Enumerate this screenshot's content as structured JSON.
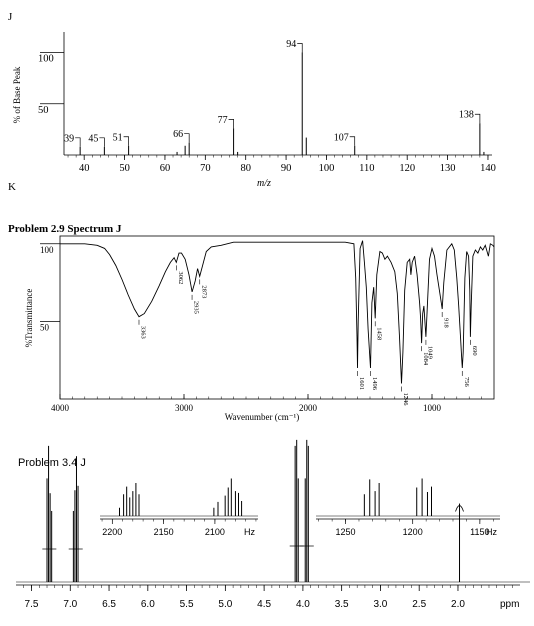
{
  "sections": {
    "ms_letter": "J",
    "ir_letter": "K",
    "ir_title": "Problem 2.9 Spectrum J",
    "nmr_title": "Problem 3.4 J"
  },
  "chart_data": [
    {
      "type": "bar",
      "name": "mass-spectrum",
      "xlabel": "m/z",
      "ylabel": "% of Base Peak",
      "xlim": [
        35,
        141
      ],
      "ylim": [
        0,
        120
      ],
      "xticks": [
        40,
        50,
        60,
        70,
        80,
        90,
        100,
        110,
        120,
        130,
        140
      ],
      "yticks": [
        50,
        100
      ],
      "peaks": [
        {
          "x": 39,
          "y": 8,
          "label": "39"
        },
        {
          "x": 45,
          "y": 8,
          "label": "45"
        },
        {
          "x": 51,
          "y": 9,
          "label": "51"
        },
        {
          "x": 63,
          "y": 3,
          "label": ""
        },
        {
          "x": 65,
          "y": 9,
          "label": ""
        },
        {
          "x": 66,
          "y": 12,
          "label": "66"
        },
        {
          "x": 77,
          "y": 26,
          "label": "77"
        },
        {
          "x": 78,
          "y": 3,
          "label": ""
        },
        {
          "x": 94,
          "y": 100,
          "label": "94"
        },
        {
          "x": 95,
          "y": 17,
          "label": ""
        },
        {
          "x": 107,
          "y": 9,
          "label": "107"
        },
        {
          "x": 138,
          "y": 31,
          "label": "138"
        },
        {
          "x": 139,
          "y": 3,
          "label": ""
        }
      ]
    },
    {
      "type": "line",
      "name": "ir-spectrum",
      "title": "Problem 2.9 Spectrum J",
      "xlabel": "Wavenumber (cm⁻¹)",
      "ylabel": "%Transmittance",
      "xlim": [
        4000,
        500
      ],
      "ylim": [
        0,
        105
      ],
      "xticks": [
        4000,
        3000,
        2000,
        1000
      ],
      "yticks": [
        50,
        100
      ],
      "peak_labels": [
        {
          "x": 3363,
          "y": 53,
          "label": "3363"
        },
        {
          "x": 3062,
          "y": 88,
          "label": "3062"
        },
        {
          "x": 2935,
          "y": 69,
          "label": "2935"
        },
        {
          "x": 2873,
          "y": 79,
          "label": "2873"
        },
        {
          "x": 1601,
          "y": 20,
          "label": "1601"
        },
        {
          "x": 1496,
          "y": 20,
          "label": "1496"
        },
        {
          "x": 1458,
          "y": 52,
          "label": "1458"
        },
        {
          "x": 1246,
          "y": 10,
          "label": "1246"
        },
        {
          "x": 1084,
          "y": 36,
          "label": "1084"
        },
        {
          "x": 1049,
          "y": 40,
          "label": "1049"
        },
        {
          "x": 918,
          "y": 58,
          "label": "918"
        },
        {
          "x": 756,
          "y": 20,
          "label": "756"
        },
        {
          "x": 690,
          "y": 40,
          "label": "690"
        }
      ],
      "points": [
        [
          4000,
          100
        ],
        [
          3800,
          100
        ],
        [
          3700,
          99
        ],
        [
          3640,
          97
        ],
        [
          3600,
          93
        ],
        [
          3550,
          86
        ],
        [
          3500,
          77
        ],
        [
          3450,
          67
        ],
        [
          3400,
          58
        ],
        [
          3363,
          53
        ],
        [
          3320,
          55
        ],
        [
          3260,
          63
        ],
        [
          3200,
          73
        ],
        [
          3150,
          82
        ],
        [
          3110,
          88
        ],
        [
          3080,
          91
        ],
        [
          3062,
          88
        ],
        [
          3040,
          94
        ],
        [
          3020,
          94
        ],
        [
          2990,
          90
        ],
        [
          2960,
          80
        ],
        [
          2935,
          69
        ],
        [
          2910,
          76
        ],
        [
          2890,
          84
        ],
        [
          2873,
          79
        ],
        [
          2850,
          86
        ],
        [
          2820,
          95
        ],
        [
          2780,
          98
        ],
        [
          2700,
          99
        ],
        [
          2600,
          101
        ],
        [
          2500,
          101
        ],
        [
          2000,
          101
        ],
        [
          1700,
          101
        ],
        [
          1630,
          100
        ],
        [
          1615,
          78
        ],
        [
          1605,
          40
        ],
        [
          1601,
          20
        ],
        [
          1595,
          50
        ],
        [
          1580,
          97
        ],
        [
          1560,
          102
        ],
        [
          1545,
          88
        ],
        [
          1530,
          72
        ],
        [
          1515,
          45
        ],
        [
          1496,
          20
        ],
        [
          1485,
          62
        ],
        [
          1470,
          72
        ],
        [
          1458,
          52
        ],
        [
          1445,
          80
        ],
        [
          1420,
          95
        ],
        [
          1400,
          94
        ],
        [
          1380,
          90
        ],
        [
          1360,
          92
        ],
        [
          1330,
          88
        ],
        [
          1300,
          82
        ],
        [
          1280,
          68
        ],
        [
          1262,
          40
        ],
        [
          1246,
          10
        ],
        [
          1235,
          30
        ],
        [
          1220,
          70
        ],
        [
          1200,
          88
        ],
        [
          1180,
          90
        ],
        [
          1170,
          80
        ],
        [
          1160,
          88
        ],
        [
          1140,
          92
        ],
        [
          1120,
          80
        ],
        [
          1100,
          62
        ],
        [
          1092,
          52
        ],
        [
          1084,
          36
        ],
        [
          1075,
          55
        ],
        [
          1065,
          60
        ],
        [
          1049,
          40
        ],
        [
          1040,
          55
        ],
        [
          1020,
          90
        ],
        [
          1000,
          97
        ],
        [
          980,
          92
        ],
        [
          960,
          80
        ],
        [
          940,
          70
        ],
        [
          925,
          62
        ],
        [
          918,
          58
        ],
        [
          905,
          75
        ],
        [
          880,
          96
        ],
        [
          840,
          100
        ],
        [
          820,
          96
        ],
        [
          800,
          78
        ],
        [
          785,
          60
        ],
        [
          770,
          40
        ],
        [
          760,
          25
        ],
        [
          756,
          20
        ],
        [
          748,
          30
        ],
        [
          735,
          78
        ],
        [
          720,
          95
        ],
        [
          705,
          92
        ],
        [
          695,
          70
        ],
        [
          690,
          40
        ],
        [
          684,
          60
        ],
        [
          670,
          92
        ],
        [
          650,
          96
        ],
        [
          630,
          94
        ],
        [
          610,
          98
        ],
        [
          590,
          96
        ],
        [
          570,
          99
        ],
        [
          545,
          92
        ],
        [
          530,
          100
        ],
        [
          510,
          99
        ],
        [
          500,
          98
        ]
      ]
    },
    {
      "type": "line",
      "name": "nmr-spectrum",
      "title": "Problem 3.4 J",
      "xlabel": "ppm",
      "xlim": [
        7.7,
        1.2
      ],
      "xticks": [
        7.5,
        7.0,
        6.5,
        6.0,
        5.5,
        5.0,
        4.5,
        4.0,
        3.5,
        3.0,
        2.5,
        2.0
      ],
      "peaks": [
        {
          "x": 7.3,
          "y": 70
        },
        {
          "x": 7.28,
          "y": 92
        },
        {
          "x": 7.26,
          "y": 60
        },
        {
          "x": 7.24,
          "y": 48
        },
        {
          "x": 6.96,
          "y": 48
        },
        {
          "x": 6.94,
          "y": 62
        },
        {
          "x": 6.92,
          "y": 85
        },
        {
          "x": 6.9,
          "y": 65
        },
        {
          "x": 4.1,
          "y": 92
        },
        {
          "x": 4.08,
          "y": 96
        },
        {
          "x": 4.06,
          "y": 70
        },
        {
          "x": 3.97,
          "y": 70
        },
        {
          "x": 3.95,
          "y": 96
        },
        {
          "x": 3.93,
          "y": 92
        },
        {
          "x": 1.98,
          "y": 53
        }
      ],
      "insets": [
        {
          "name": "inset-left",
          "xticks": [
            2200,
            2150,
            2100
          ],
          "unit": "Hz",
          "xlim": [
            2212,
            2058
          ],
          "peaks": [
            {
              "x": 2193,
              "y": 25
            },
            {
              "x": 2189,
              "y": 55
            },
            {
              "x": 2186,
              "y": 72
            },
            {
              "x": 2183,
              "y": 48
            },
            {
              "x": 2180,
              "y": 62
            },
            {
              "x": 2177,
              "y": 80
            },
            {
              "x": 2174,
              "y": 55
            },
            {
              "x": 2101,
              "y": 25
            },
            {
              "x": 2097,
              "y": 38
            },
            {
              "x": 2090,
              "y": 52
            },
            {
              "x": 2087,
              "y": 70
            },
            {
              "x": 2084,
              "y": 90
            },
            {
              "x": 2080,
              "y": 62
            },
            {
              "x": 2077,
              "y": 58
            },
            {
              "x": 2074,
              "y": 40
            }
          ]
        },
        {
          "name": "inset-right",
          "xticks": [
            1250,
            1200,
            1150
          ],
          "unit": "Hz",
          "xlim": [
            1272,
            1135
          ],
          "peaks": [
            {
              "x": 1236,
              "y": 55
            },
            {
              "x": 1232,
              "y": 88
            },
            {
              "x": 1228,
              "y": 62
            },
            {
              "x": 1225,
              "y": 80
            },
            {
              "x": 1197,
              "y": 70
            },
            {
              "x": 1193,
              "y": 90
            },
            {
              "x": 1189,
              "y": 60
            },
            {
              "x": 1186,
              "y": 72
            }
          ]
        }
      ]
    }
  ]
}
